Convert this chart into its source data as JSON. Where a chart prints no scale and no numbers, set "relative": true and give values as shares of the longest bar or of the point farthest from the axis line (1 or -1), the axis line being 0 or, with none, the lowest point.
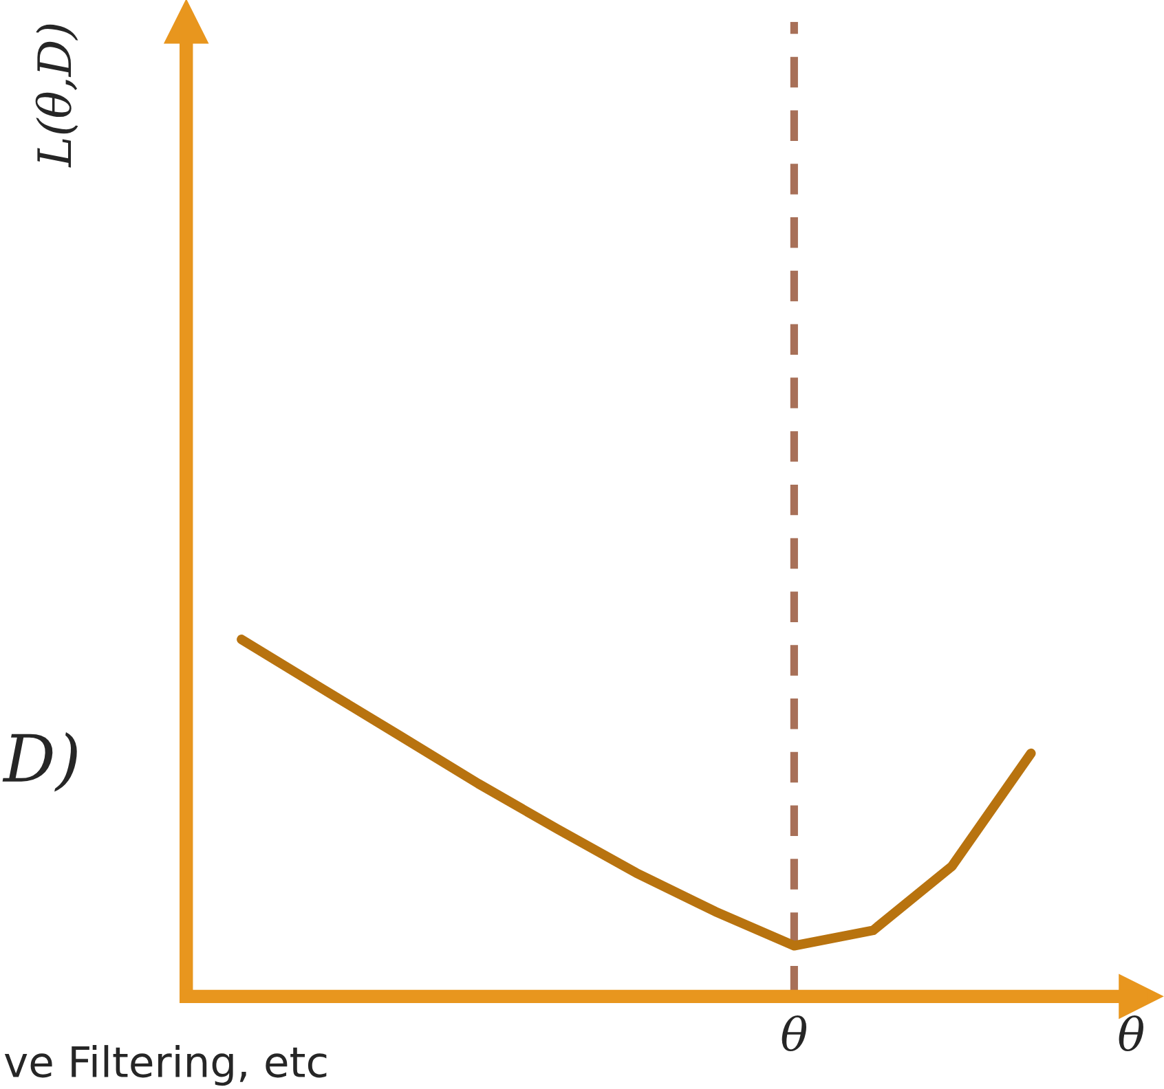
{
  "chart_data": {
    "type": "line",
    "relative": true,
    "xlabel": "θ",
    "categories": [
      null,
      null,
      null,
      null,
      null,
      null,
      null,
      null,
      null,
      null,
      null
    ],
    "series": [
      {
        "color": "#b8730f",
        "values": [
          1.0,
          0.865,
          0.731,
          0.596,
          0.469,
          0.346,
          0.238,
          0.142,
          0.185,
          0.365,
          0.681
        ]
      }
    ],
    "annotations": [
      "L(θ,D)",
      "D)",
      "ve Filtering, etc",
      "θ"
    ],
    "marker": "none",
    "line_style": "solid",
    "grid": false,
    "legend": false
  }
}
